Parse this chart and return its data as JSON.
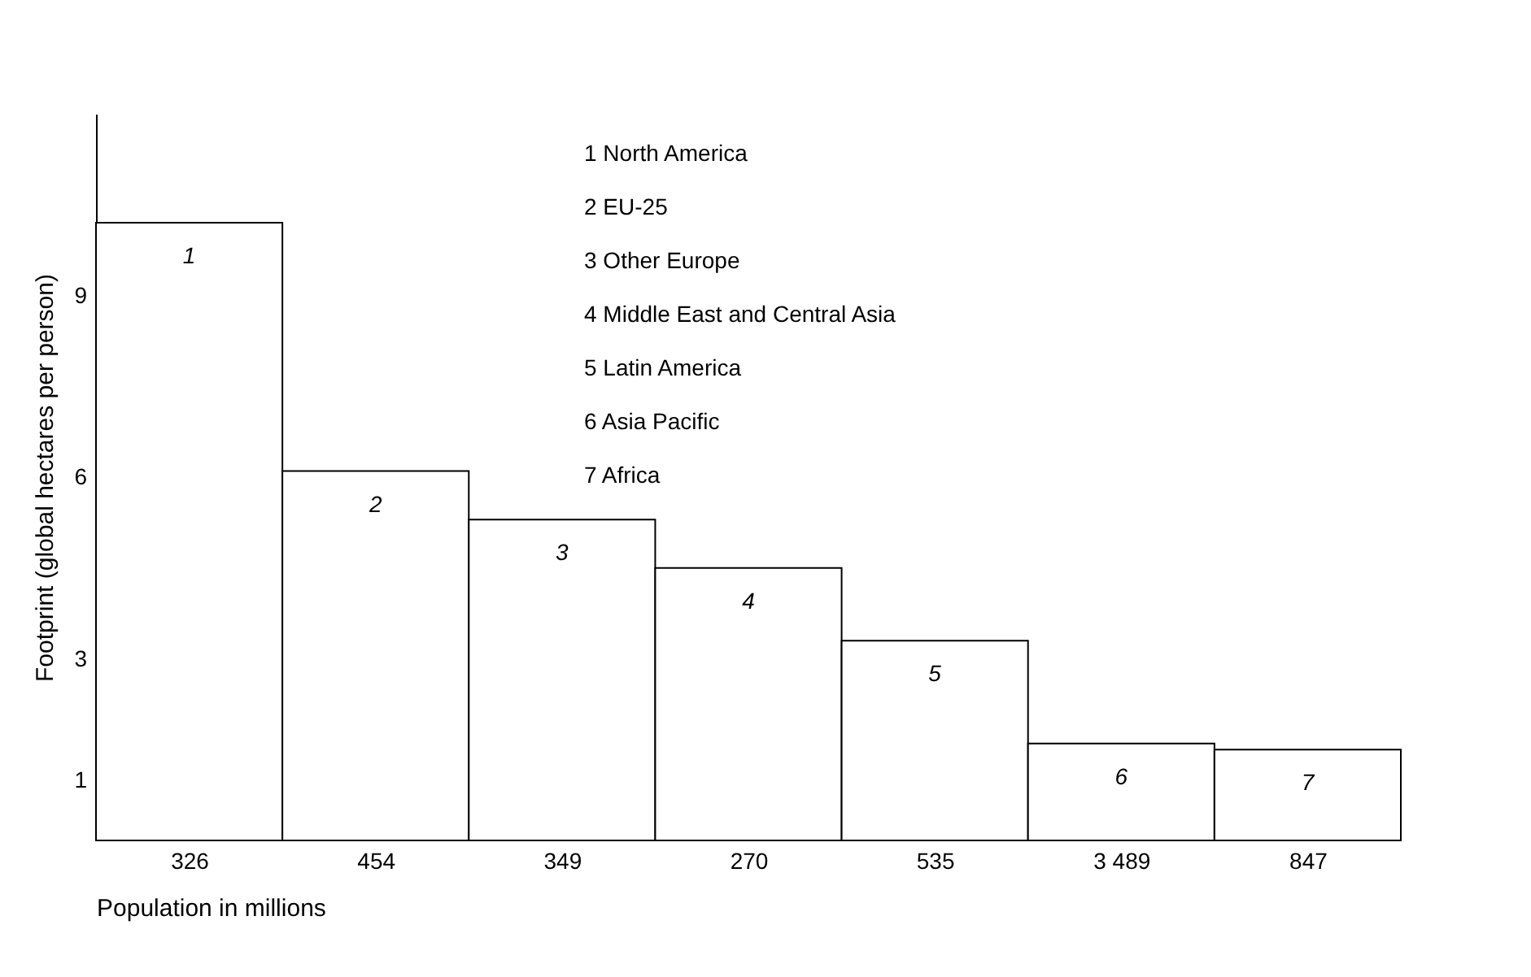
{
  "chart_data": {
    "type": "bar",
    "xlabel": "Population in millions",
    "ylabel": "Footprint (global hectares per person)",
    "categories": [
      "326",
      "454",
      "349",
      "270",
      "535",
      "3 489",
      "847"
    ],
    "series": [
      {
        "color": "#ffffff",
        "values": [
          10.2,
          6.1,
          5.3,
          4.5,
          3.3,
          1.6,
          1.5
        ]
      }
    ],
    "ylim": [
      0,
      12
    ],
    "yticks": [
      1,
      3,
      6,
      9
    ],
    "grid": false,
    "annotations": [
      "1 North America",
      "2 EU-25",
      "3 Other Europe",
      "4 Middle East and Central Asia",
      "5 Latin America",
      "6 Asia Pacific",
      "7 Africa",
      "1",
      "2",
      "3",
      "4",
      "5",
      "6",
      "7"
    ]
  }
}
